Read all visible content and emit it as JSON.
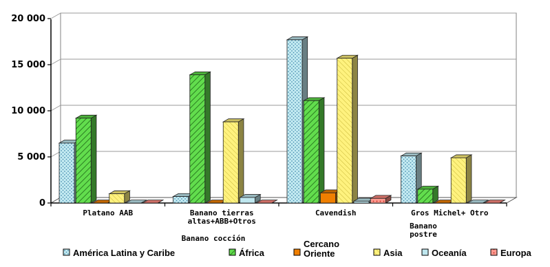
{
  "chart_data": {
    "type": "bar",
    "title": "",
    "xlabel": "",
    "ylabel": "",
    "ylim": [
      0,
      20000
    ],
    "y_ticks": [
      "20 000",
      "15 000",
      "10 000",
      "5 000",
      "0"
    ],
    "y_tick_values": [
      20000,
      15000,
      10000,
      5000,
      0
    ],
    "grid": true,
    "three_d": true,
    "legend_placement": "bottom",
    "categories": [
      [
        "Platano AAB"
      ],
      [
        "Banano tierras",
        "altas+ABB+Otros"
      ],
      [
        "Cavendish"
      ],
      [
        "Gros Michel+ Otro"
      ]
    ],
    "group_labels": [
      {
        "lines": [
          "Banano cocción"
        ]
      },
      {
        "lines": [
          "Banano",
          "postre"
        ]
      }
    ],
    "series": [
      {
        "name": "América Latina y Caribe",
        "color": "#bfe7ef",
        "pattern": "dots",
        "values": [
          6500,
          700,
          17700,
          5100
        ]
      },
      {
        "name": "África",
        "color": "#5fdc4a",
        "pattern": "hatch",
        "values": [
          9200,
          13900,
          11100,
          1500
        ]
      },
      {
        "name": [
          "Cercano",
          "Oriente"
        ],
        "color": "#f07f00",
        "pattern": "solid",
        "values": [
          0,
          0,
          1100,
          0
        ]
      },
      {
        "name": "Asia",
        "color": "#fff07a",
        "pattern": "lines",
        "values": [
          1000,
          8800,
          15700,
          4900
        ]
      },
      {
        "name": "Oceanía",
        "color": "#bfe7ef",
        "pattern": "plain",
        "values": [
          0,
          600,
          200,
          0
        ]
      },
      {
        "name": "Europa",
        "color": "#ff8a80",
        "pattern": "dots",
        "values": [
          0,
          0,
          500,
          0
        ]
      }
    ]
  }
}
